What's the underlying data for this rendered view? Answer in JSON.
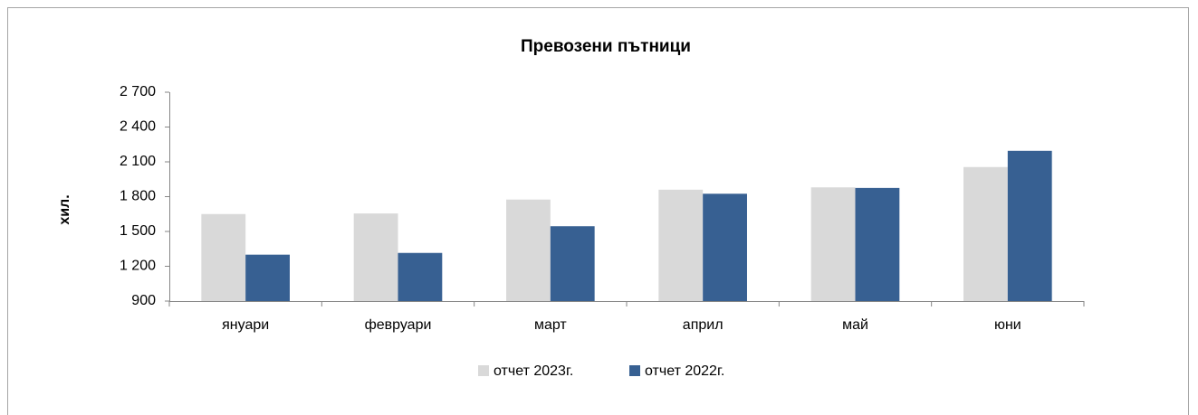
{
  "chart_data": {
    "type": "bar",
    "title": "Превозени пътници",
    "y_label": "хил.",
    "categories": [
      "януари",
      "февруари",
      "март",
      "април",
      "май",
      "юни"
    ],
    "series": [
      {
        "name": "отчет 2023г.",
        "color": "#d9d9d9",
        "values": [
          1650,
          1655,
          1775,
          1860,
          1880,
          2055
        ]
      },
      {
        "name": "отчет 2022г.",
        "color": "#376092",
        "values": [
          1300,
          1315,
          1545,
          1825,
          1875,
          2195
        ]
      }
    ],
    "ylim": [
      900,
      2700
    ],
    "yticks": [
      {
        "value": 900,
        "label": "900"
      },
      {
        "value": 1200,
        "label": "1 200"
      },
      {
        "value": 1500,
        "label": "1 500"
      },
      {
        "value": 1800,
        "label": "1 800"
      },
      {
        "value": 2100,
        "label": "2 100"
      },
      {
        "value": 2400,
        "label": "2 400"
      },
      {
        "value": 2700,
        "label": "2 700"
      }
    ],
    "grid": false,
    "legend": "bottom"
  }
}
